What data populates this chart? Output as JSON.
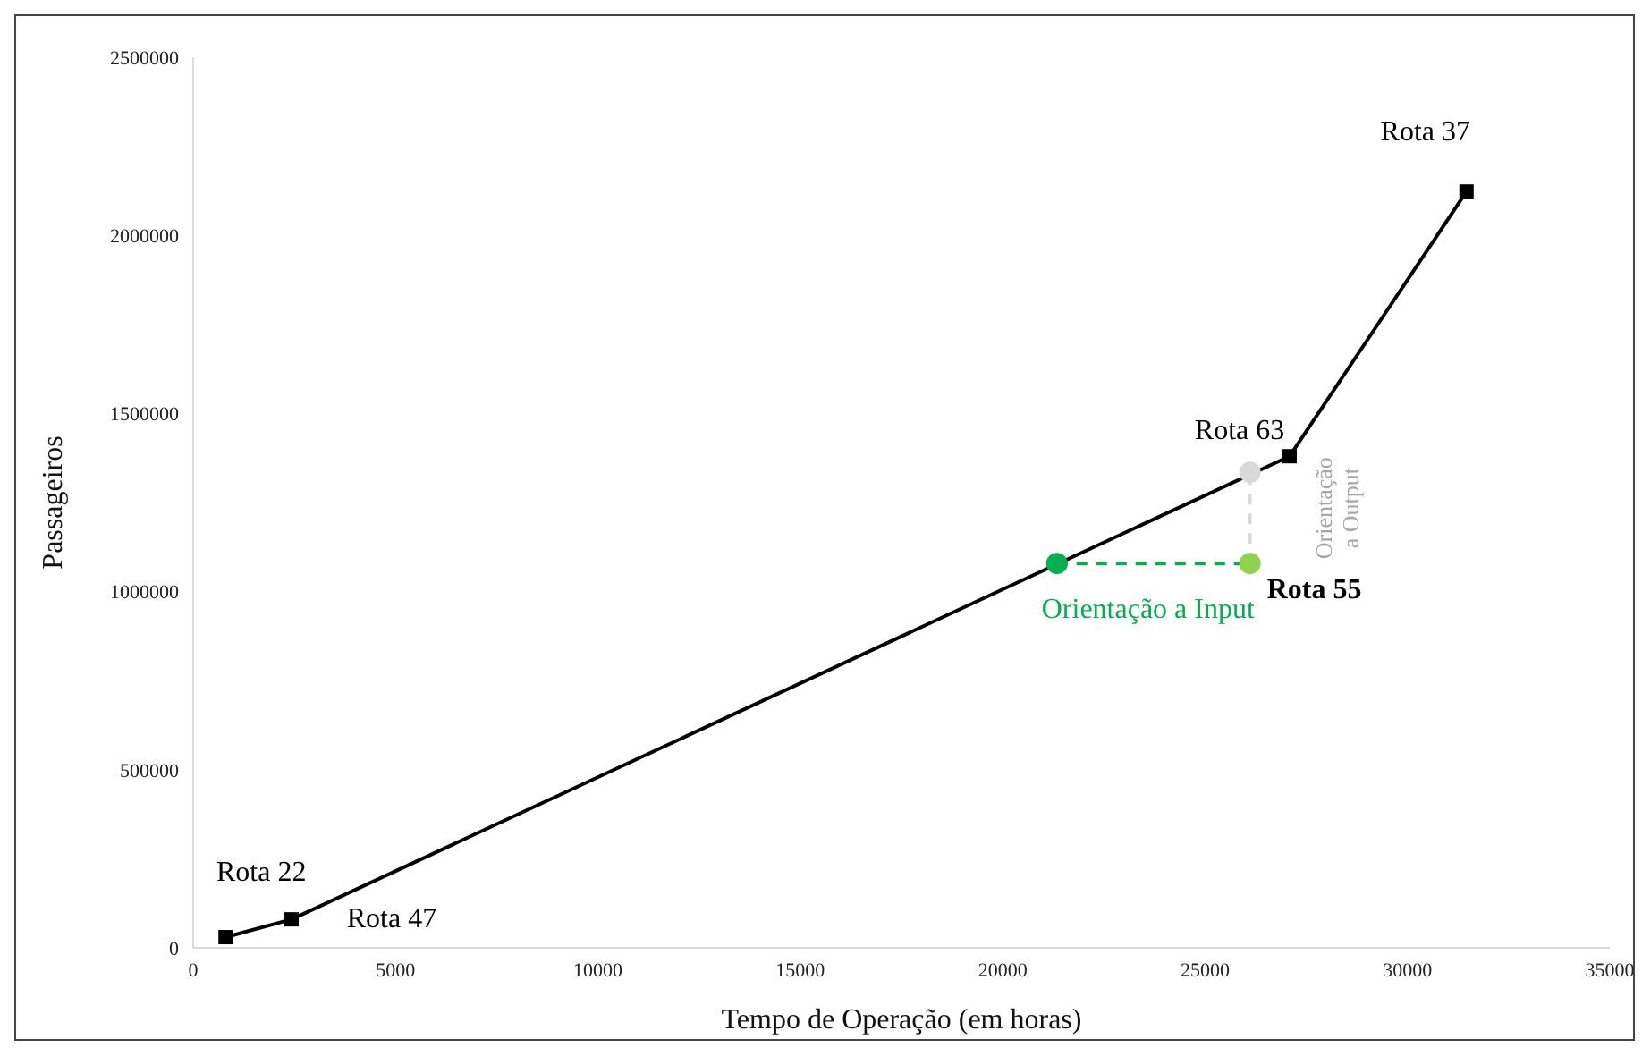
{
  "chart_data": {
    "type": "line",
    "xlabel": "Tempo de Operação (em horas)",
    "ylabel": "Passageiros",
    "xlim": [
      0,
      35000
    ],
    "xticks": [
      0,
      5000,
      10000,
      15000,
      20000,
      25000,
      30000,
      35000
    ],
    "ylim": [
      0,
      2500000
    ],
    "yticks": [
      0,
      500000,
      1000000,
      1500000,
      2000000,
      2500000
    ],
    "grid": false,
    "legend": false,
    "series": [
      {
        "color": "#000000",
        "marker": "square",
        "line_style": "solid",
        "x": [
          800,
          2430,
          27090,
          31460
        ],
        "values": [
          30000,
          80000,
          1380000,
          2123000
        ]
      },
      {
        "type": "line",
        "color": "#00b050",
        "marker": "none",
        "line_style": "dashed",
        "x": [
          21340,
          26110
        ],
        "values": [
          1079000,
          1079000
        ]
      },
      {
        "type": "line",
        "color": "#d9d9d9",
        "marker": "none",
        "line_style": "dashed",
        "x": [
          26110,
          26110
        ],
        "values": [
          1079000,
          1335000
        ]
      },
      {
        "type": "scatter",
        "color": "#00b050",
        "marker": "circle",
        "x": [
          21340
        ],
        "values": [
          1079000
        ]
      },
      {
        "type": "scatter",
        "color": "#d9d9d9",
        "marker": "circle",
        "x": [
          26110
        ],
        "values": [
          1335000
        ]
      },
      {
        "type": "scatter",
        "color": "#92d050",
        "marker": "circle",
        "x": [
          26110
        ],
        "values": [
          1079000
        ]
      }
    ],
    "annotations": [
      {
        "text": "Rota 22",
        "x": 800,
        "y": 30000
      },
      {
        "text": "Rota 47",
        "x": 2430,
        "y": 80000
      },
      {
        "text": "Rota 63",
        "x": 27090,
        "y": 1380000
      },
      {
        "text": "Rota 37",
        "x": 31460,
        "y": 2123000
      },
      {
        "text": "Rota 55",
        "x": 26110,
        "y": 1079000
      },
      {
        "text": "Orientação a Input",
        "x": 21340,
        "y": 1079000
      },
      {
        "text": "Orientação a Output",
        "x": 26110,
        "y": 1335000
      }
    ]
  }
}
